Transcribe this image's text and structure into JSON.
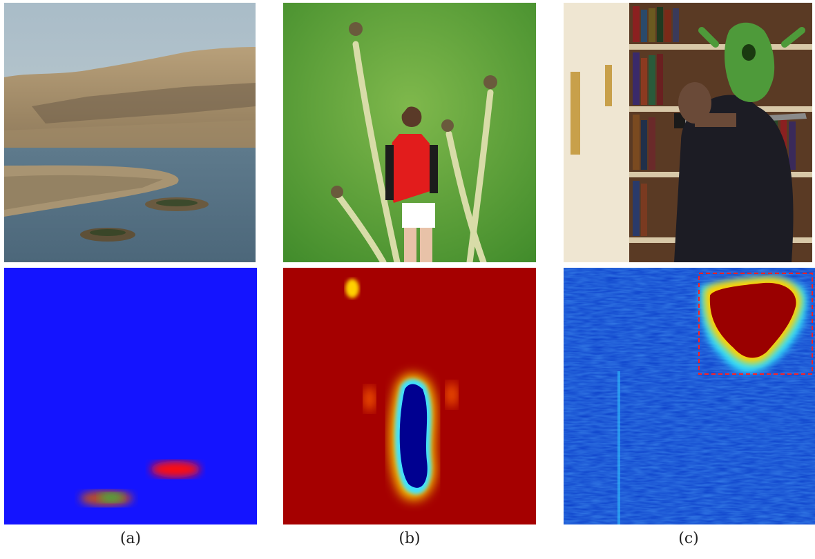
{
  "figure": {
    "columns": [
      {
        "id": "a",
        "caption": "(a)",
        "photo_description_icon": "landscape-river-photo",
        "heatmap": {
          "colormap": "blue-red",
          "background": "#1010ff",
          "blobs": [
            "#ff1010",
            "#50b040"
          ]
        }
      },
      {
        "id": "b",
        "caption": "(b)",
        "photo_description_icon": "girl-dandelions-photo",
        "heatmap": {
          "colormap": "jet",
          "background": "#9a0000",
          "blob": "#000090"
        }
      },
      {
        "id": "c",
        "caption": "(c)",
        "photo_description_icon": "library-selfie-photo",
        "heatmap": {
          "colormap": "jet",
          "background": "#0a3cc8",
          "blob": "#9a0000",
          "box_color": "#ff2020",
          "box_style": "dashed"
        }
      }
    ]
  }
}
